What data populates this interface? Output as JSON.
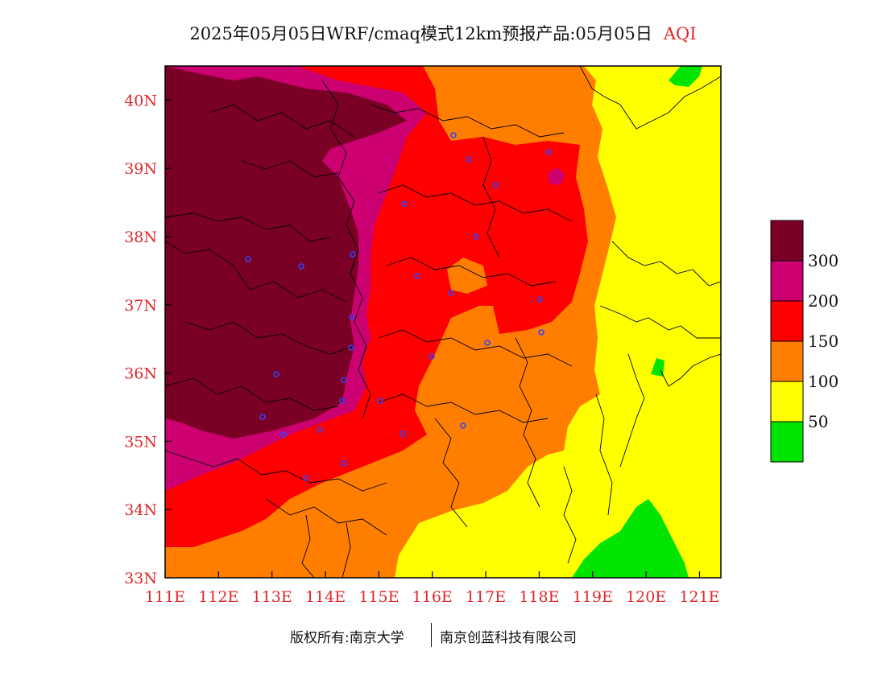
{
  "title": {
    "main": "2025年05月05日WRF/cmaq模式12km预报产品:05月05日",
    "variable": "AQI"
  },
  "map": {
    "lon_labels": [
      "111E",
      "112E",
      "113E",
      "114E",
      "115E",
      "116E",
      "117E",
      "118E",
      "119E",
      "120E",
      "121E"
    ],
    "lat_labels": [
      "33N",
      "34N",
      "35N",
      "36N",
      "37N",
      "38N",
      "39N",
      "40N"
    ],
    "lon_range": [
      111,
      121.4
    ],
    "lat_range": [
      33,
      40.5
    ],
    "label_color": "#e0282b"
  },
  "legend": {
    "labels": [
      "300",
      "200",
      "150",
      "100",
      "50"
    ],
    "colors": [
      "#7a0025",
      "#cc0070",
      "#ff0000",
      "#ff7e00",
      "#ffff00",
      "#00e400"
    ]
  },
  "footer": {
    "copyright": "版权所有:南京大学",
    "company": "南京创蓝科技有限公司"
  }
}
